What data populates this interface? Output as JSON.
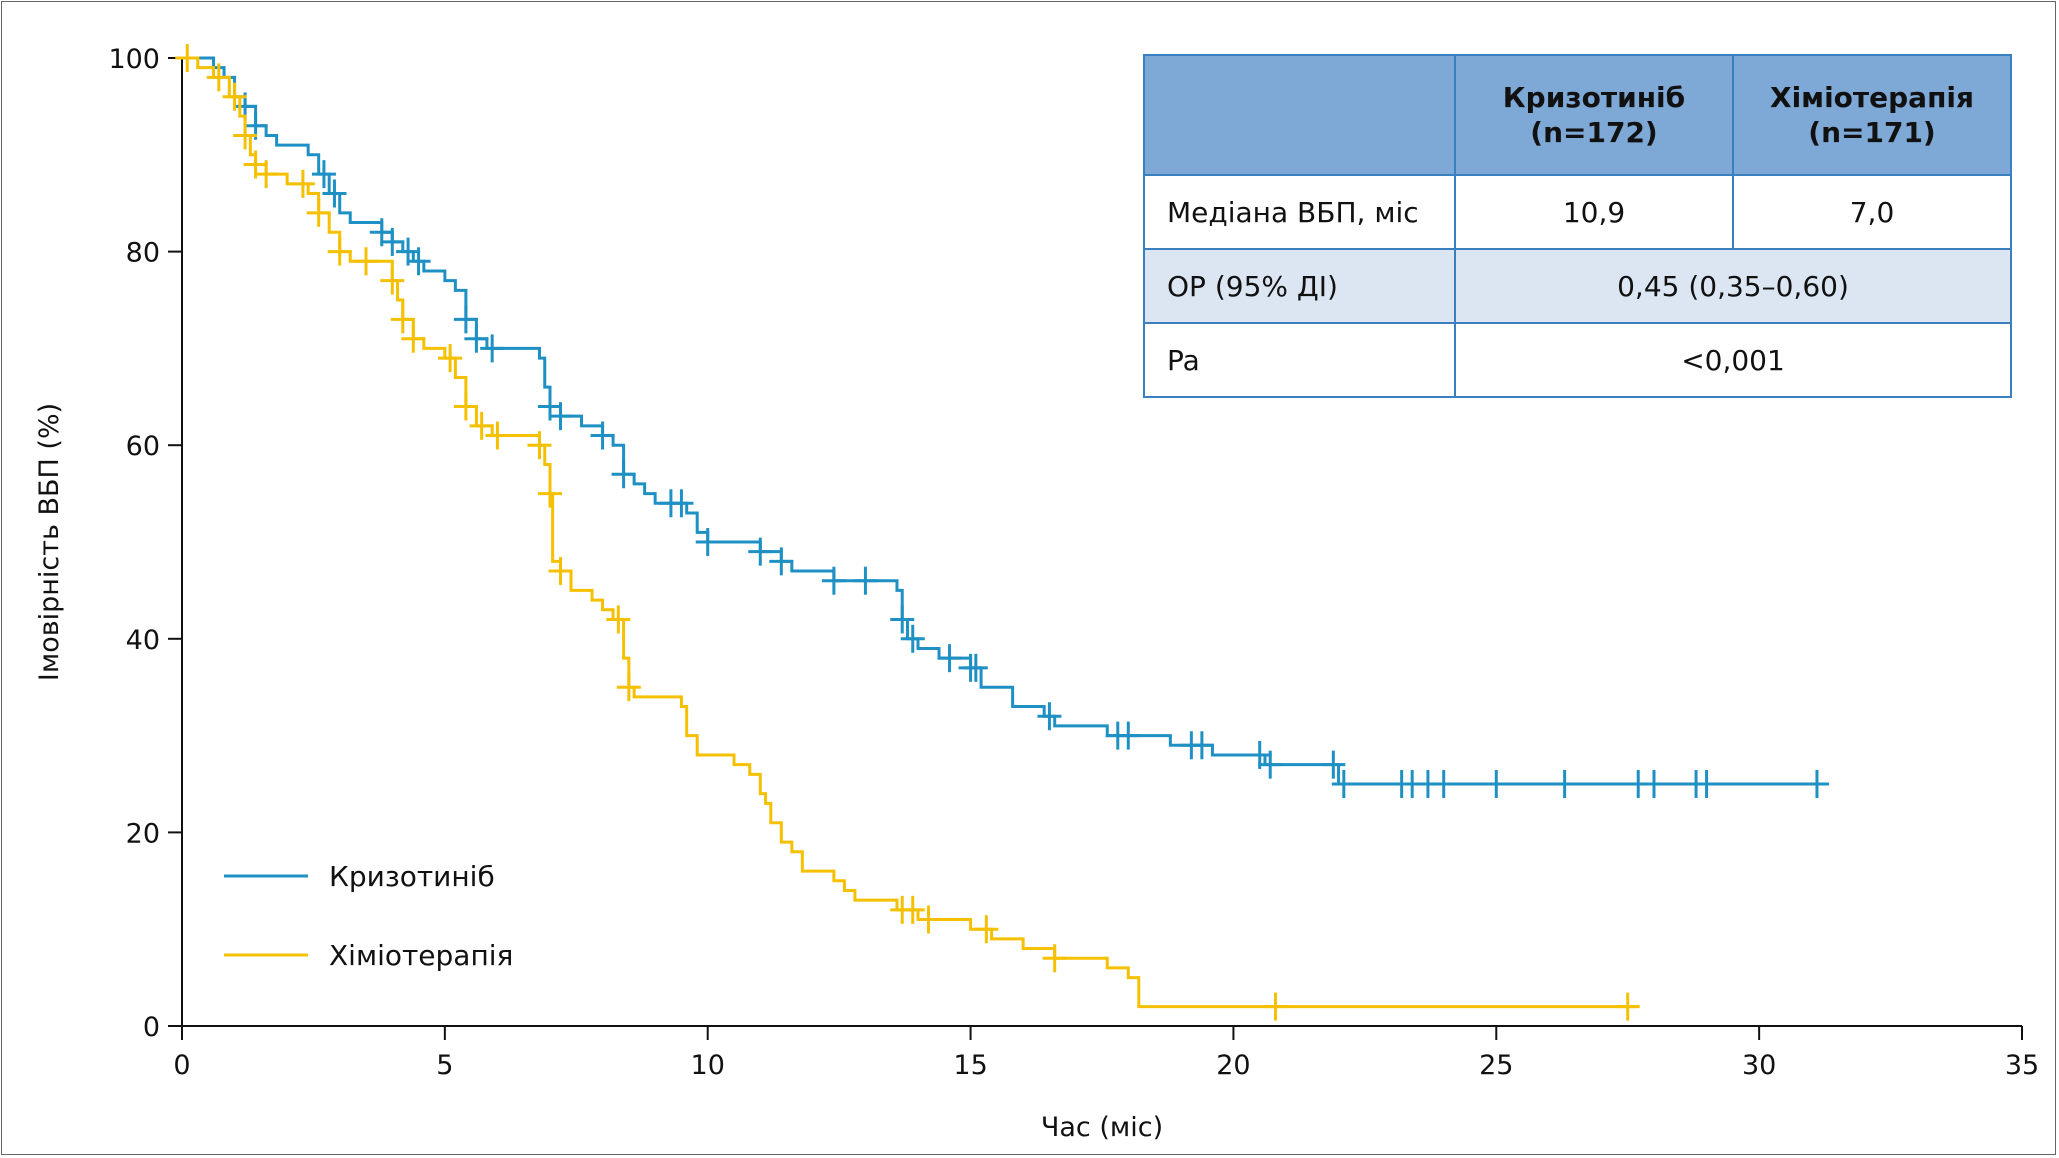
{
  "table": {
    "headers": [
      "",
      "Кризотиніб\n(n=172)",
      "Хіміотерапія\n(n=171)"
    ],
    "rows": [
      {
        "label": "Медіана ВБП, міс",
        "cells": [
          "10,9",
          "7,0"
        ]
      },
      {
        "label": "ОР (95% ДІ)",
        "merged": "0,45 (0,35–0,60)"
      },
      {
        "label": "Pa",
        "merged": "<0,001"
      }
    ]
  },
  "colors": {
    "crizotinib": "#1e90c4",
    "chemo": "#f5c000",
    "table_header": "#7ea8d6",
    "table_alt": "#dce6f2",
    "table_border": "#3a7fc0"
  },
  "chart_data": {
    "type": "line",
    "title": "",
    "xlabel": "Час (міс)",
    "ylabel": "Імовірність ВБП (%)",
    "xlim": [
      0,
      35
    ],
    "ylim": [
      0,
      100
    ],
    "xticks": [
      0,
      5,
      10,
      15,
      20,
      25,
      30,
      35
    ],
    "yticks": [
      0,
      20,
      40,
      60,
      80,
      100
    ],
    "grid": false,
    "legend": "bottom-left",
    "series": [
      {
        "name": "Кризотиніб",
        "color": "#1e90c4",
        "step": true,
        "points": [
          [
            0,
            100
          ],
          [
            0.4,
            100
          ],
          [
            0.6,
            99
          ],
          [
            0.8,
            98
          ],
          [
            1.0,
            96
          ],
          [
            1.2,
            95
          ],
          [
            1.4,
            93
          ],
          [
            1.6,
            92
          ],
          [
            1.8,
            91
          ],
          [
            2.4,
            90
          ],
          [
            2.6,
            88
          ],
          [
            2.8,
            86
          ],
          [
            3.0,
            84
          ],
          [
            3.2,
            83
          ],
          [
            3.8,
            82
          ],
          [
            4.0,
            81
          ],
          [
            4.2,
            80
          ],
          [
            4.4,
            79
          ],
          [
            4.6,
            78
          ],
          [
            5.0,
            77
          ],
          [
            5.2,
            76
          ],
          [
            5.4,
            73
          ],
          [
            5.6,
            71
          ],
          [
            5.8,
            70
          ],
          [
            6.8,
            69
          ],
          [
            6.9,
            66
          ],
          [
            7.0,
            64
          ],
          [
            7.2,
            63
          ],
          [
            7.6,
            62
          ],
          [
            8.0,
            61
          ],
          [
            8.2,
            60
          ],
          [
            8.4,
            57
          ],
          [
            8.6,
            56
          ],
          [
            8.8,
            55
          ],
          [
            9.0,
            54
          ],
          [
            9.6,
            53
          ],
          [
            9.8,
            51
          ],
          [
            10.0,
            50
          ],
          [
            11.0,
            49
          ],
          [
            11.4,
            48
          ],
          [
            11.6,
            47
          ],
          [
            12.4,
            46
          ],
          [
            13.6,
            45
          ],
          [
            13.7,
            42
          ],
          [
            13.8,
            40
          ],
          [
            14.0,
            39
          ],
          [
            14.4,
            38
          ],
          [
            15.0,
            37
          ],
          [
            15.2,
            35
          ],
          [
            15.8,
            33
          ],
          [
            16.4,
            32
          ],
          [
            16.6,
            31
          ],
          [
            17.6,
            30
          ],
          [
            18.8,
            29
          ],
          [
            19.6,
            28
          ],
          [
            20.6,
            27
          ],
          [
            21.0,
            27
          ],
          [
            22.0,
            25
          ],
          [
            31.3,
            25
          ]
        ],
        "censor": [
          1.2,
          1.4,
          2.7,
          2.9,
          3.8,
          4.0,
          4.3,
          4.5,
          5.4,
          5.6,
          5.9,
          7.0,
          7.2,
          8.0,
          8.4,
          9.3,
          9.5,
          10.0,
          11.0,
          11.4,
          12.4,
          13.0,
          13.7,
          13.9,
          14.6,
          15.0,
          15.1,
          16.5,
          17.8,
          18.0,
          19.2,
          19.4,
          20.5,
          20.7,
          21.9,
          22.1,
          23.2,
          23.4,
          23.7,
          24.0,
          25.0,
          26.3,
          27.7,
          28.0,
          28.8,
          29.0,
          31.1
        ]
      },
      {
        "name": "Хіміотерапія",
        "color": "#f5c000",
        "step": true,
        "points": [
          [
            0,
            100
          ],
          [
            0.3,
            99
          ],
          [
            0.6,
            98
          ],
          [
            0.9,
            96
          ],
          [
            1.1,
            94
          ],
          [
            1.2,
            92
          ],
          [
            1.3,
            90
          ],
          [
            1.4,
            89
          ],
          [
            1.6,
            88
          ],
          [
            2.0,
            87
          ],
          [
            2.4,
            86
          ],
          [
            2.6,
            84
          ],
          [
            2.8,
            82
          ],
          [
            3.0,
            80
          ],
          [
            3.2,
            79
          ],
          [
            3.8,
            79
          ],
          [
            4.0,
            77
          ],
          [
            4.1,
            75
          ],
          [
            4.2,
            73
          ],
          [
            4.4,
            71
          ],
          [
            4.6,
            70
          ],
          [
            5.0,
            69
          ],
          [
            5.2,
            67
          ],
          [
            5.4,
            64
          ],
          [
            5.6,
            62
          ],
          [
            5.9,
            61
          ],
          [
            6.8,
            60
          ],
          [
            6.9,
            58
          ],
          [
            7.0,
            55
          ],
          [
            7.05,
            48
          ],
          [
            7.2,
            47
          ],
          [
            7.4,
            45
          ],
          [
            7.8,
            44
          ],
          [
            8.0,
            43
          ],
          [
            8.2,
            42
          ],
          [
            8.4,
            38
          ],
          [
            8.5,
            35
          ],
          [
            8.6,
            34
          ],
          [
            9.5,
            33
          ],
          [
            9.6,
            30
          ],
          [
            9.8,
            28
          ],
          [
            10.5,
            27
          ],
          [
            10.8,
            26
          ],
          [
            11.0,
            24
          ],
          [
            11.1,
            23
          ],
          [
            11.2,
            21
          ],
          [
            11.4,
            19
          ],
          [
            11.6,
            18
          ],
          [
            11.8,
            16
          ],
          [
            12.4,
            15
          ],
          [
            12.6,
            14
          ],
          [
            12.8,
            13
          ],
          [
            13.6,
            12
          ],
          [
            14.0,
            11
          ],
          [
            15.0,
            10
          ],
          [
            15.4,
            9
          ],
          [
            16.0,
            8
          ],
          [
            16.6,
            7
          ],
          [
            17.6,
            6
          ],
          [
            18.0,
            5
          ],
          [
            18.2,
            2
          ],
          [
            27.7,
            2
          ]
        ],
        "censor": [
          0.1,
          0.7,
          1.0,
          1.2,
          1.4,
          1.6,
          2.3,
          2.6,
          3.0,
          3.5,
          4.0,
          4.2,
          4.4,
          5.1,
          5.4,
          5.7,
          6.0,
          6.8,
          7.0,
          7.2,
          8.3,
          8.5,
          13.7,
          13.9,
          14.2,
          15.3,
          16.6,
          20.8,
          27.5
        ]
      }
    ]
  }
}
